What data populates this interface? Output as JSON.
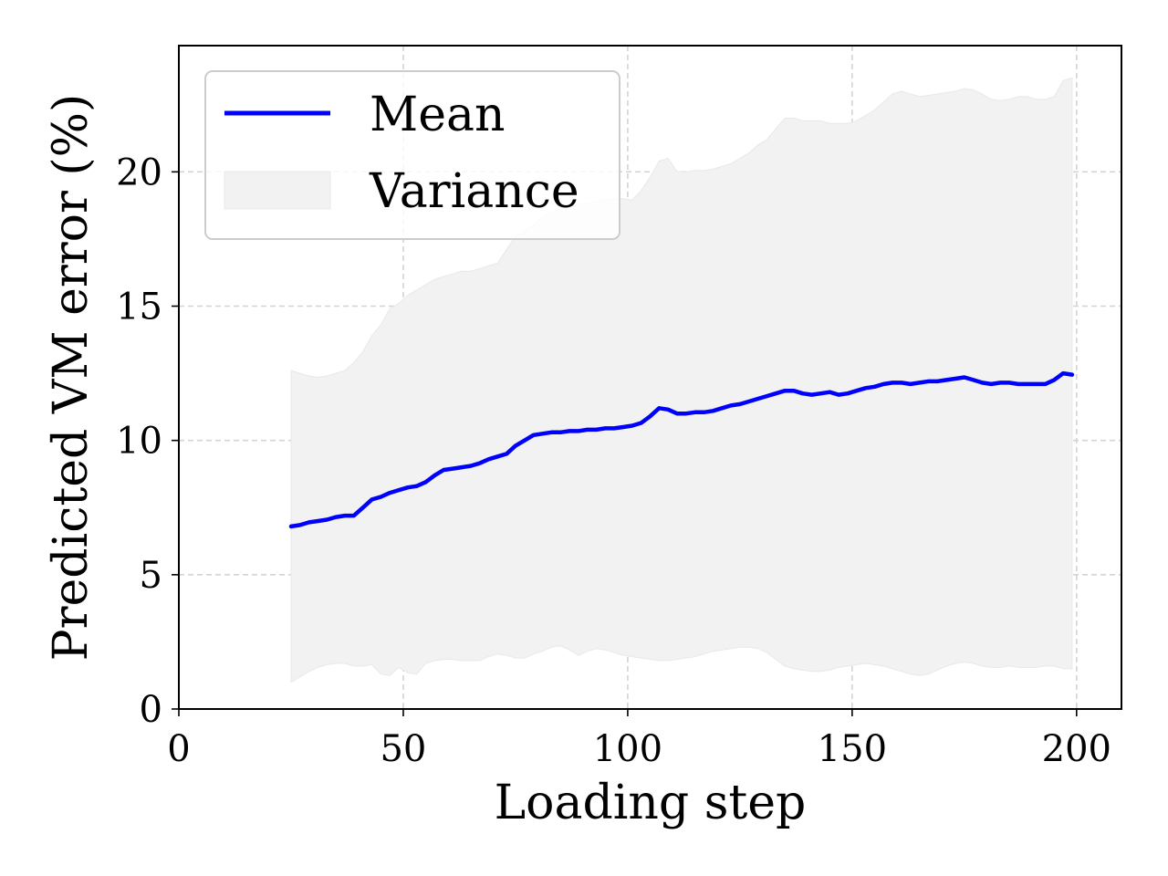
{
  "chart_data": {
    "type": "line",
    "xlabel": "Loading step",
    "ylabel": "Predicted VM error (%)",
    "xlim": [
      0,
      210
    ],
    "ylim": [
      0,
      24.7
    ],
    "x_ticks": [
      "0",
      "50",
      "100",
      "150",
      "200"
    ],
    "y_ticks": [
      "0",
      "5",
      "10",
      "15",
      "20"
    ],
    "grid": true,
    "legend_position": "top-left",
    "colors": {
      "mean": "#0000ff",
      "variance": "#f2f2f2",
      "variance_edge": "#e8e8e8"
    },
    "series": [
      {
        "name": "Mean",
        "type": "line",
        "x": [
          25,
          27,
          29,
          31,
          33,
          35,
          37,
          39,
          41,
          43,
          45,
          47,
          49,
          51,
          53,
          55,
          57,
          59,
          61,
          63,
          65,
          67,
          69,
          71,
          73,
          75,
          77,
          79,
          81,
          83,
          85,
          87,
          89,
          91,
          93,
          95,
          97,
          99,
          101,
          103,
          105,
          107,
          109,
          111,
          113,
          115,
          117,
          119,
          121,
          123,
          125,
          127,
          129,
          131,
          133,
          135,
          137,
          139,
          141,
          143,
          145,
          147,
          149,
          151,
          153,
          155,
          157,
          159,
          161,
          163,
          165,
          167,
          169,
          171,
          173,
          175,
          177,
          179,
          181,
          183,
          185,
          187,
          189,
          191,
          193,
          195,
          197,
          199
        ],
        "values": [
          6.8,
          6.85,
          6.95,
          7.0,
          7.05,
          7.15,
          7.2,
          7.2,
          7.5,
          7.8,
          7.9,
          8.05,
          8.15,
          8.25,
          8.3,
          8.45,
          8.7,
          8.9,
          8.95,
          9.0,
          9.05,
          9.15,
          9.3,
          9.4,
          9.5,
          9.8,
          10.0,
          10.2,
          10.25,
          10.3,
          10.3,
          10.35,
          10.35,
          10.4,
          10.4,
          10.45,
          10.45,
          10.5,
          10.55,
          10.65,
          10.9,
          11.2,
          11.15,
          11.0,
          11.0,
          11.05,
          11.05,
          11.1,
          11.2,
          11.3,
          11.35,
          11.45,
          11.55,
          11.65,
          11.75,
          11.85,
          11.85,
          11.75,
          11.7,
          11.75,
          11.8,
          11.7,
          11.75,
          11.85,
          11.95,
          12.0,
          12.1,
          12.15,
          12.15,
          12.1,
          12.15,
          12.2,
          12.2,
          12.25,
          12.3,
          12.35,
          12.25,
          12.15,
          12.1,
          12.15,
          12.15,
          12.1,
          12.1,
          12.1,
          12.1,
          12.25,
          12.5,
          12.45
        ]
      },
      {
        "name": "Variance",
        "type": "band",
        "x": [
          25,
          27,
          29,
          31,
          33,
          35,
          37,
          39,
          41,
          43,
          45,
          47,
          49,
          51,
          53,
          55,
          57,
          59,
          61,
          63,
          65,
          67,
          69,
          71,
          73,
          75,
          77,
          79,
          81,
          83,
          85,
          87,
          89,
          91,
          93,
          95,
          97,
          99,
          101,
          103,
          105,
          107,
          109,
          111,
          113,
          115,
          117,
          119,
          121,
          123,
          125,
          127,
          129,
          131,
          133,
          135,
          137,
          139,
          141,
          143,
          145,
          147,
          149,
          151,
          153,
          155,
          157,
          159,
          161,
          163,
          165,
          167,
          169,
          171,
          173,
          175,
          177,
          179,
          181,
          183,
          185,
          187,
          189,
          191,
          193,
          195,
          197,
          199
        ],
        "upper": [
          12.6,
          12.5,
          12.4,
          12.35,
          12.4,
          12.5,
          12.6,
          12.9,
          13.3,
          13.9,
          14.3,
          14.9,
          15.1,
          15.4,
          15.6,
          15.8,
          16.0,
          16.1,
          16.2,
          16.3,
          16.3,
          16.4,
          16.5,
          16.6,
          17.1,
          17.6,
          17.8,
          18.0,
          18.3,
          18.5,
          18.6,
          18.7,
          18.8,
          18.85,
          18.9,
          18.95,
          19.0,
          19.0,
          18.95,
          19.3,
          19.8,
          20.4,
          20.5,
          20.0,
          20.0,
          20.05,
          20.05,
          20.1,
          20.2,
          20.3,
          20.5,
          20.7,
          21.0,
          21.2,
          21.6,
          22.0,
          22.0,
          21.9,
          21.9,
          21.9,
          21.8,
          21.8,
          21.8,
          21.9,
          22.1,
          22.3,
          22.6,
          22.9,
          23.0,
          22.9,
          22.8,
          22.85,
          22.9,
          22.95,
          23.0,
          23.1,
          23.05,
          22.9,
          22.7,
          22.65,
          22.7,
          22.8,
          22.8,
          22.7,
          22.7,
          22.8,
          23.4,
          23.5
        ],
        "lower": [
          1.0,
          1.2,
          1.4,
          1.55,
          1.65,
          1.7,
          1.7,
          1.6,
          1.6,
          1.65,
          1.3,
          1.25,
          1.55,
          1.35,
          1.3,
          1.7,
          1.8,
          1.85,
          1.85,
          1.8,
          1.8,
          1.8,
          1.95,
          2.05,
          2.0,
          1.9,
          1.9,
          2.05,
          2.15,
          2.3,
          2.35,
          2.2,
          2.0,
          2.15,
          2.25,
          2.2,
          2.1,
          2.0,
          1.95,
          1.9,
          1.85,
          1.8,
          1.8,
          1.85,
          1.9,
          1.95,
          2.05,
          2.15,
          2.2,
          2.25,
          2.3,
          2.3,
          2.25,
          2.1,
          1.85,
          1.6,
          1.5,
          1.45,
          1.4,
          1.4,
          1.45,
          1.55,
          1.6,
          1.65,
          1.7,
          1.65,
          1.6,
          1.5,
          1.4,
          1.3,
          1.25,
          1.3,
          1.45,
          1.6,
          1.7,
          1.75,
          1.7,
          1.6,
          1.55,
          1.55,
          1.6,
          1.55,
          1.55,
          1.55,
          1.6,
          1.6,
          1.5,
          1.5
        ]
      }
    ]
  }
}
